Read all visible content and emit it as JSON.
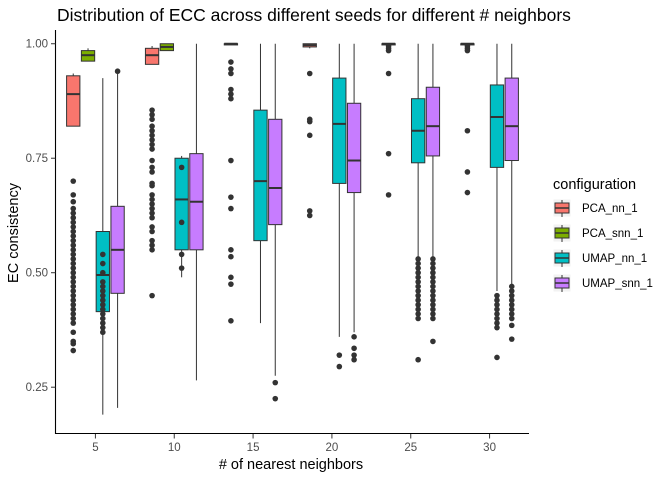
{
  "chart_data": {
    "type": "boxplot",
    "title": "Distribution of ECC across different seeds for different # neighbors",
    "xlabel": "# of nearest neighbors",
    "ylabel": "EC consistency",
    "categories": [
      "5",
      "10",
      "15",
      "20",
      "25",
      "30"
    ],
    "ylim": [
      0.15,
      1.03
    ],
    "yticks": [
      0.25,
      0.5,
      0.75,
      1.0
    ],
    "ytick_labels": [
      "0.25",
      "0.50",
      "0.75",
      "1.00"
    ],
    "grid": false,
    "legend": {
      "title": "configuration",
      "position": "right"
    },
    "series": [
      {
        "name": "PCA_nn_1",
        "color": "#f8766d",
        "boxes": [
          {
            "category": "5",
            "min": 0.82,
            "q1": 0.82,
            "median": 0.89,
            "q3": 0.93,
            "max": 0.935,
            "outliers": [
              0.7,
              0.67,
              0.655,
              0.64,
              0.63,
              0.62,
              0.61,
              0.6,
              0.59,
              0.58,
              0.57,
              0.56,
              0.55,
              0.54,
              0.53,
              0.52,
              0.51,
              0.5,
              0.49,
              0.48,
              0.47,
              0.46,
              0.45,
              0.44,
              0.43,
              0.42,
              0.41,
              0.4,
              0.39,
              0.37,
              0.35,
              0.345,
              0.33
            ]
          },
          {
            "category": "10",
            "min": 0.955,
            "q1": 0.955,
            "median": 0.975,
            "q3": 0.99,
            "max": 0.995,
            "outliers": [
              0.855,
              0.845,
              0.835,
              0.82,
              0.81,
              0.8,
              0.79,
              0.78,
              0.77,
              0.745,
              0.73,
              0.72,
              0.695,
              0.69,
              0.67,
              0.66,
              0.65,
              0.64,
              0.63,
              0.62,
              0.6,
              0.59,
              0.57,
              0.56,
              0.55,
              0.45
            ]
          },
          {
            "category": "15",
            "min": 0.998,
            "q1": 0.998,
            "median": 1.0,
            "q3": 1.0,
            "max": 1.0,
            "outliers": [
              0.96,
              0.945,
              0.935,
              0.9,
              0.89,
              0.88,
              0.745,
              0.665,
              0.64,
              0.55,
              0.535,
              0.49,
              0.475,
              0.395
            ]
          },
          {
            "category": "20",
            "min": 0.99,
            "q1": 0.993,
            "median": 0.997,
            "q3": 1.0,
            "max": 1.0,
            "outliers": [
              0.935,
              0.835,
              0.83,
              0.8,
              0.635,
              0.625
            ]
          },
          {
            "category": "25",
            "min": 1.0,
            "q1": 1.0,
            "median": 1.0,
            "q3": 1.0,
            "max": 1.0,
            "outliers": [
              0.995,
              0.99,
              0.985,
              0.935,
              0.76,
              0.67
            ]
          },
          {
            "category": "30",
            "min": 1.0,
            "q1": 1.0,
            "median": 1.0,
            "q3": 1.0,
            "max": 1.0,
            "outliers": [
              0.995,
              0.99,
              0.985,
              0.81,
              0.72,
              0.675
            ]
          }
        ]
      },
      {
        "name": "PCA_snn_1",
        "color": "#7cae00",
        "boxes": [
          {
            "category": "5",
            "min": 0.962,
            "q1": 0.962,
            "median": 0.975,
            "q3": 0.985,
            "max": 0.99,
            "outliers": []
          },
          {
            "category": "10",
            "min": 0.985,
            "q1": 0.985,
            "median": 0.993,
            "q3": 1.0,
            "max": 1.0,
            "outliers": []
          }
        ]
      },
      {
        "name": "UMAP_nn_1",
        "color": "#00bfc4",
        "boxes": [
          {
            "category": "5",
            "min": 0.19,
            "q1": 0.415,
            "median": 0.495,
            "q3": 0.59,
            "max": 0.925,
            "outliers": [
              0.54,
              0.52,
              0.5,
              0.48,
              0.47,
              0.46,
              0.45,
              0.44,
              0.43,
              0.42,
              0.41,
              0.4,
              0.39,
              0.38,
              0.37
            ]
          },
          {
            "category": "10",
            "min": 0.49,
            "q1": 0.55,
            "median": 0.66,
            "q3": 0.75,
            "max": 0.755,
            "outliers": [
              0.73,
              0.61,
              0.54,
              0.51
            ]
          },
          {
            "category": "15",
            "min": 0.39,
            "q1": 0.57,
            "median": 0.7,
            "q3": 0.855,
            "max": 1.0,
            "outliers": []
          },
          {
            "category": "20",
            "min": 0.36,
            "q1": 0.695,
            "median": 0.825,
            "q3": 0.925,
            "max": 1.0,
            "outliers": [
              0.32,
              0.295
            ]
          },
          {
            "category": "25",
            "min": 0.53,
            "q1": 0.74,
            "median": 0.81,
            "q3": 0.88,
            "max": 1.0,
            "outliers": [
              0.53,
              0.52,
              0.51,
              0.5,
              0.49,
              0.48,
              0.47,
              0.46,
              0.45,
              0.44,
              0.43,
              0.42,
              0.41,
              0.4,
              0.31
            ]
          },
          {
            "category": "30",
            "min": 0.46,
            "q1": 0.73,
            "median": 0.84,
            "q3": 0.91,
            "max": 1.0,
            "outliers": [
              0.45,
              0.44,
              0.43,
              0.42,
              0.41,
              0.4,
              0.39,
              0.38,
              0.315
            ]
          }
        ]
      },
      {
        "name": "UMAP_snn_1",
        "color": "#c77cff",
        "boxes": [
          {
            "category": "5",
            "min": 0.205,
            "q1": 0.455,
            "median": 0.55,
            "q3": 0.645,
            "max": 0.94,
            "outliers": [
              0.94
            ]
          },
          {
            "category": "10",
            "min": 0.265,
            "q1": 0.55,
            "median": 0.655,
            "q3": 0.76,
            "max": 1.0,
            "outliers": []
          },
          {
            "category": "15",
            "min": 0.275,
            "q1": 0.605,
            "median": 0.685,
            "q3": 0.835,
            "max": 1.0,
            "outliers": [
              0.26,
              0.225
            ]
          },
          {
            "category": "20",
            "min": 0.37,
            "q1": 0.675,
            "median": 0.745,
            "q3": 0.87,
            "max": 1.0,
            "outliers": [
              0.36,
              0.335,
              0.32,
              0.31
            ]
          },
          {
            "category": "25",
            "min": 0.535,
            "q1": 0.755,
            "median": 0.82,
            "q3": 0.905,
            "max": 1.0,
            "outliers": [
              0.53,
              0.52,
              0.51,
              0.5,
              0.49,
              0.48,
              0.47,
              0.46,
              0.45,
              0.44,
              0.43,
              0.42,
              0.41,
              0.4,
              0.35
            ]
          },
          {
            "category": "30",
            "min": 0.47,
            "q1": 0.745,
            "median": 0.82,
            "q3": 0.925,
            "max": 1.0,
            "outliers": [
              0.47,
              0.46,
              0.45,
              0.44,
              0.43,
              0.42,
              0.41,
              0.4,
              0.385,
              0.355
            ]
          }
        ]
      }
    ]
  }
}
